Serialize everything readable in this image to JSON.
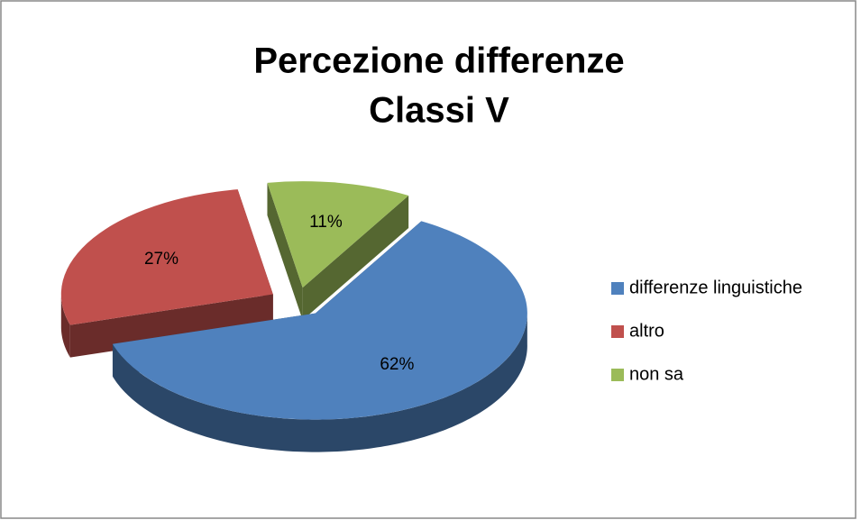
{
  "chart_data": {
    "type": "pie",
    "title": [
      "Percezione differenze",
      "Classi V"
    ],
    "categories": [
      "differenze linguistiche",
      "altro",
      "non sa"
    ],
    "values": [
      62,
      27,
      11
    ],
    "value_labels": [
      "62%",
      "27%",
      "11%"
    ],
    "colors": [
      "#4f81bd",
      "#c0504d",
      "#9bbb59"
    ],
    "legend": "right"
  }
}
